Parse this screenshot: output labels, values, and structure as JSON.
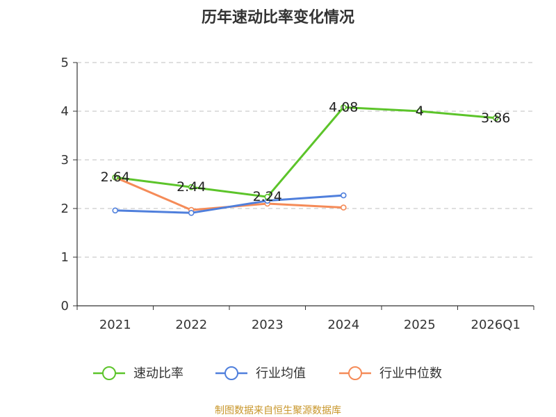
{
  "chart_data": {
    "type": "line",
    "title": "历年速动比率变化情况",
    "categories": [
      "2021",
      "2022",
      "2023",
      "2024",
      "2025",
      "2026Q1"
    ],
    "ylim": [
      0,
      5
    ],
    "yticks": [
      "0",
      "1",
      "2",
      "3",
      "4",
      "5"
    ],
    "grid": true,
    "legend_position": "bottom",
    "series": [
      {
        "name": "速动比率",
        "color": "#5cc42a",
        "values": [
          2.64,
          2.44,
          2.24,
          4.08,
          4,
          3.86
        ],
        "labels": [
          "2.64",
          "2.44",
          "2.24",
          "4.08",
          "4",
          "3.86"
        ]
      },
      {
        "name": "行业均值",
        "color": "#4f7fdc",
        "values": [
          1.96,
          1.91,
          2.16,
          2.27,
          null,
          null
        ]
      },
      {
        "name": "行业中位数",
        "color": "#f58b58",
        "values": [
          2.64,
          1.97,
          2.1,
          2.02,
          null,
          null
        ]
      }
    ],
    "source": "制图数据来自恒生聚源数据库"
  }
}
